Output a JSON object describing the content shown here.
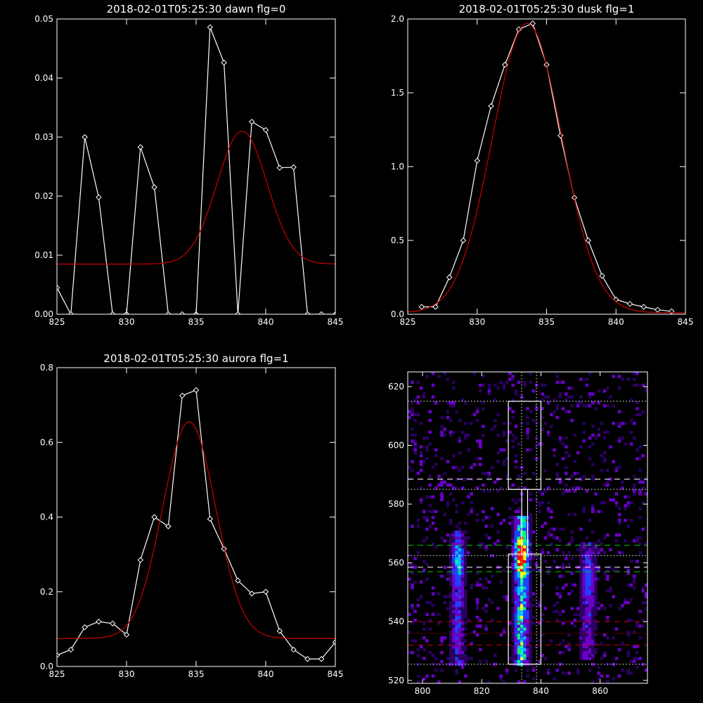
{
  "chart_data": [
    {
      "type": "line",
      "title": "2018-02-01T05:25:30 dawn flg=0",
      "xlim": [
        825,
        845
      ],
      "ylim": [
        0,
        0.05
      ],
      "xticks": [
        "825",
        "830",
        "835",
        "840",
        "845"
      ],
      "yticks": [
        "0.00",
        "0.01",
        "0.02",
        "0.03",
        "0.04",
        "0.05"
      ],
      "series": [
        {
          "color": "#ffffff",
          "markers": "diamond",
          "x": [
            825,
            826,
            827,
            828,
            829,
            830,
            831,
            832,
            833,
            834,
            835,
            836,
            837,
            838,
            839,
            840,
            841,
            842,
            843,
            844,
            845
          ],
          "y": [
            0.0045,
            0,
            0.03,
            0.0198,
            0,
            0,
            0.0283,
            0.0215,
            0,
            0,
            0,
            0.0486,
            0.0426,
            0,
            0.0326,
            0.0312,
            0.0248,
            0.0249,
            0,
            0,
            0
          ]
        },
        {
          "color": "#cc0000",
          "fit": "gaussian",
          "baseline": 0.0085,
          "amplitude": 0.0225,
          "center": 838.3,
          "sigma": 1.8
        }
      ]
    },
    {
      "type": "line",
      "title": "2018-02-01T05:25:30 dusk flg=1",
      "xlim": [
        825,
        845
      ],
      "ylim": [
        0,
        2.0
      ],
      "xticks": [
        "825",
        "830",
        "835",
        "840",
        "845"
      ],
      "yticks": [
        "0.0",
        "0.5",
        "1.0",
        "1.5",
        "2.0"
      ],
      "series": [
        {
          "color": "#ffffff",
          "markers": "diamond",
          "x": [
            826,
            827,
            828,
            829,
            830,
            831,
            832,
            833,
            834,
            835,
            836,
            837,
            838,
            839,
            840,
            841,
            842,
            843,
            844
          ],
          "y": [
            0.05,
            0.05,
            0.25,
            0.5,
            1.04,
            1.41,
            1.69,
            1.93,
            1.97,
            1.69,
            1.21,
            0.79,
            0.5,
            0.26,
            0.1,
            0.07,
            0.05,
            0.03,
            0.02
          ]
        },
        {
          "color": "#cc0000",
          "fit": "gaussian",
          "baseline": 0.01,
          "amplitude": 1.96,
          "center": 833.6,
          "sigma": 2.5
        }
      ]
    },
    {
      "type": "line",
      "title": "2018-02-01T05:25:30 aurora flg=1",
      "xlim": [
        825,
        845
      ],
      "ylim": [
        0,
        0.8
      ],
      "xticks": [
        "825",
        "830",
        "835",
        "840",
        "845"
      ],
      "yticks": [
        "0.0",
        "0.2",
        "0.4",
        "0.6",
        "0.8"
      ],
      "series": [
        {
          "color": "#ffffff",
          "markers": "diamond",
          "x": [
            825,
            826,
            827,
            828,
            829,
            830,
            831,
            832,
            833,
            834,
            835,
            836,
            837,
            838,
            839,
            840,
            841,
            842,
            843,
            844,
            845
          ],
          "y": [
            0.03,
            0.045,
            0.105,
            0.12,
            0.115,
            0.085,
            0.285,
            0.4,
            0.375,
            0.725,
            0.74,
            0.395,
            0.315,
            0.23,
            0.195,
            0.2,
            0.095,
            0.045,
            0.02,
            0.02,
            0.065
          ]
        },
        {
          "color": "#cc0000",
          "fit": "gaussian",
          "baseline": 0.075,
          "amplitude": 0.58,
          "center": 834.5,
          "sigma": 1.9
        }
      ]
    },
    {
      "type": "heatmap",
      "xlim": [
        795,
        876
      ],
      "ylim": [
        519,
        625
      ],
      "xticks": [
        "800",
        "820",
        "840",
        "860"
      ],
      "yticks": [
        "520",
        "540",
        "560",
        "580",
        "600",
        "620"
      ],
      "colormap": [
        "#000000",
        "#2a0060",
        "#6a00c8",
        "#2040ff",
        "#00c0ff",
        "#00ff80",
        "#ffff00",
        "#ff0000"
      ],
      "emission_columns": [
        {
          "x": 812,
          "strength": 0.55,
          "width": 2.2,
          "y_range": [
            525,
            570
          ],
          "core": 560
        },
        {
          "x": 833.5,
          "strength": 1.0,
          "width": 2.4,
          "y_range": [
            525,
            575
          ],
          "core": 562
        },
        {
          "x": 856,
          "strength": 0.45,
          "width": 2.5,
          "y_range": [
            527,
            566
          ],
          "core": 554
        }
      ],
      "boxes": [
        {
          "x": [
            829,
            840
          ],
          "y": [
            585,
            615
          ]
        },
        {
          "x": [
            829,
            840
          ],
          "y": [
            525.5,
            563
          ]
        },
        {
          "x": [
            833.5,
            835.5
          ],
          "y": [
            563,
            585
          ]
        }
      ],
      "vertical_dotted_lines": [
        833.5,
        838.5
      ],
      "horizontal_lines": [
        {
          "y": 615,
          "color": "#ffffff",
          "style": "dotted"
        },
        {
          "y": 588.5,
          "color": "#ffffff",
          "style": "dashed"
        },
        {
          "y": 585,
          "color": "#ffffff",
          "style": "dotted"
        },
        {
          "y": 566,
          "color": "#00cc00",
          "style": "dashed"
        },
        {
          "y": 562.5,
          "color": "#ffffff",
          "style": "dotted"
        },
        {
          "y": 558.5,
          "color": "#ffffff",
          "style": "dashed"
        },
        {
          "y": 557,
          "color": "#00cc00",
          "style": "dashed"
        },
        {
          "y": 540,
          "color": "#cc0000",
          "style": "dashed"
        },
        {
          "y": 536,
          "color": "#cc0000",
          "style": "dotted"
        },
        {
          "y": 532,
          "color": "#cc0000",
          "style": "dashed"
        },
        {
          "y": 525.5,
          "color": "#ffffff",
          "style": "dotted"
        }
      ]
    }
  ]
}
